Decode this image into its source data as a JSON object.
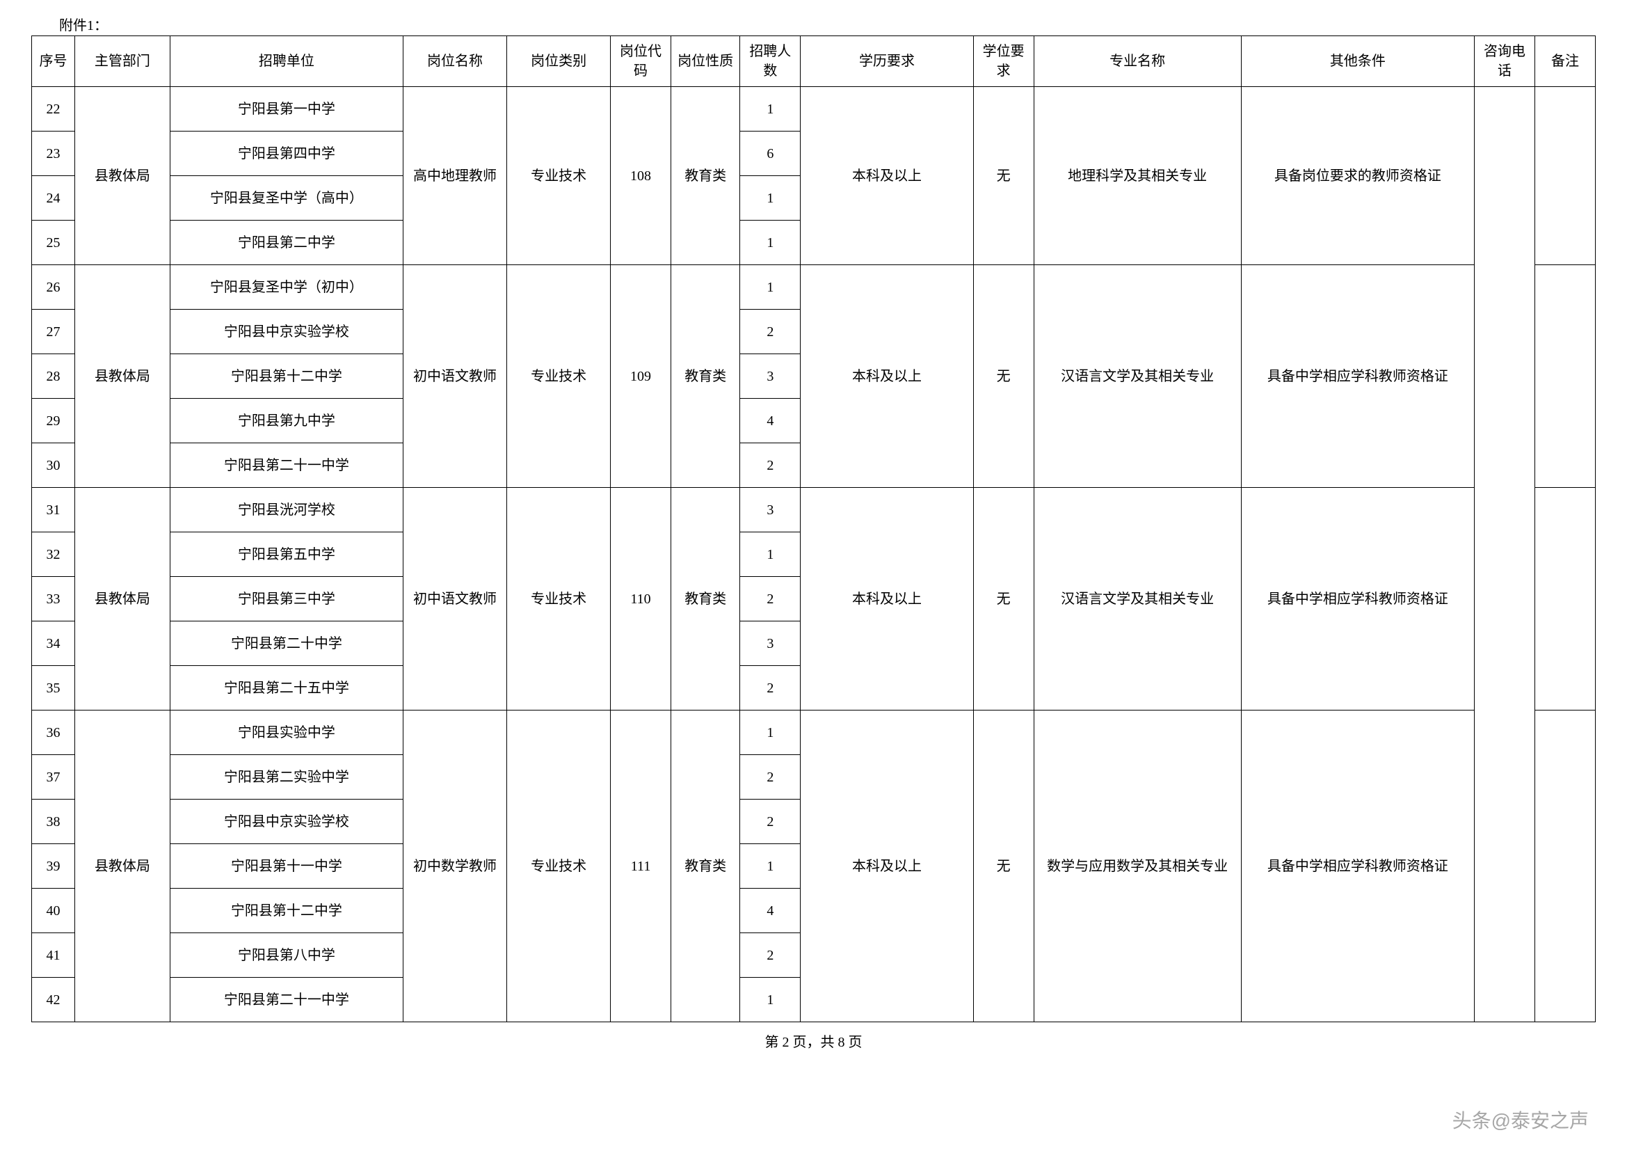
{
  "attachment_label": "附件1：",
  "headers": {
    "seq": "序号",
    "dept": "主管部门",
    "unit": "招聘单位",
    "posname": "岗位名称",
    "postype": "岗位类别",
    "poscode": "岗位代码",
    "posnature": "岗位性质",
    "count": "招聘人数",
    "edu": "学历要求",
    "degree": "学位要求",
    "major": "专业名称",
    "other": "其他条件",
    "phone": "咨询电话",
    "remark": "备注"
  },
  "groups": [
    {
      "dept": "县教体局",
      "posname": "高中地理教师",
      "postype": "专业技术",
      "poscode": "108",
      "posnature": "教育类",
      "edu": "本科及以上",
      "degree": "无",
      "major": "地理科学及其相关专业",
      "other": "具备岗位要求的教师资格证",
      "rows": [
        {
          "seq": "22",
          "unit": "宁阳县第一中学",
          "count": "1"
        },
        {
          "seq": "23",
          "unit": "宁阳县第四中学",
          "count": "6"
        },
        {
          "seq": "24",
          "unit": "宁阳县复圣中学（高中）",
          "count": "1"
        },
        {
          "seq": "25",
          "unit": "宁阳县第二中学",
          "count": "1"
        }
      ]
    },
    {
      "dept": "县教体局",
      "posname": "初中语文教师",
      "postype": "专业技术",
      "poscode": "109",
      "posnature": "教育类",
      "edu": "本科及以上",
      "degree": "无",
      "major": "汉语言文学及其相关专业",
      "other": "具备中学相应学科教师资格证",
      "rows": [
        {
          "seq": "26",
          "unit": "宁阳县复圣中学（初中）",
          "count": "1"
        },
        {
          "seq": "27",
          "unit": "宁阳县中京实验学校",
          "count": "2"
        },
        {
          "seq": "28",
          "unit": "宁阳县第十二中学",
          "count": "3"
        },
        {
          "seq": "29",
          "unit": "宁阳县第九中学",
          "count": "4"
        },
        {
          "seq": "30",
          "unit": "宁阳县第二十一中学",
          "count": "2"
        }
      ]
    },
    {
      "dept": "县教体局",
      "posname": "初中语文教师",
      "postype": "专业技术",
      "poscode": "110",
      "posnature": "教育类",
      "edu": "本科及以上",
      "degree": "无",
      "major": "汉语言文学及其相关专业",
      "other": "具备中学相应学科教师资格证",
      "rows": [
        {
          "seq": "31",
          "unit": "宁阳县洸河学校",
          "count": "3"
        },
        {
          "seq": "32",
          "unit": "宁阳县第五中学",
          "count": "1"
        },
        {
          "seq": "33",
          "unit": "宁阳县第三中学",
          "count": "2"
        },
        {
          "seq": "34",
          "unit": "宁阳县第二十中学",
          "count": "3"
        },
        {
          "seq": "35",
          "unit": "宁阳县第二十五中学",
          "count": "2"
        }
      ]
    },
    {
      "dept": "县教体局",
      "posname": "初中数学教师",
      "postype": "专业技术",
      "poscode": "111",
      "posnature": "教育类",
      "edu": "本科及以上",
      "degree": "无",
      "major": "数学与应用数学及其相关专业",
      "other": "具备中学相应学科教师资格证",
      "rows": [
        {
          "seq": "36",
          "unit": "宁阳县实验中学",
          "count": "1"
        },
        {
          "seq": "37",
          "unit": "宁阳县第二实验中学",
          "count": "2"
        },
        {
          "seq": "38",
          "unit": "宁阳县中京实验学校",
          "count": "2"
        },
        {
          "seq": "39",
          "unit": "宁阳县第十一中学",
          "count": "1"
        },
        {
          "seq": "40",
          "unit": "宁阳县第十二中学",
          "count": "4"
        },
        {
          "seq": "41",
          "unit": "宁阳县第八中学",
          "count": "2"
        },
        {
          "seq": "42",
          "unit": "宁阳县第二十一中学",
          "count": "1"
        }
      ]
    }
  ],
  "total_rows": 21,
  "footer": "第 2 页，共 8 页",
  "watermark": "头条@泰安之声"
}
